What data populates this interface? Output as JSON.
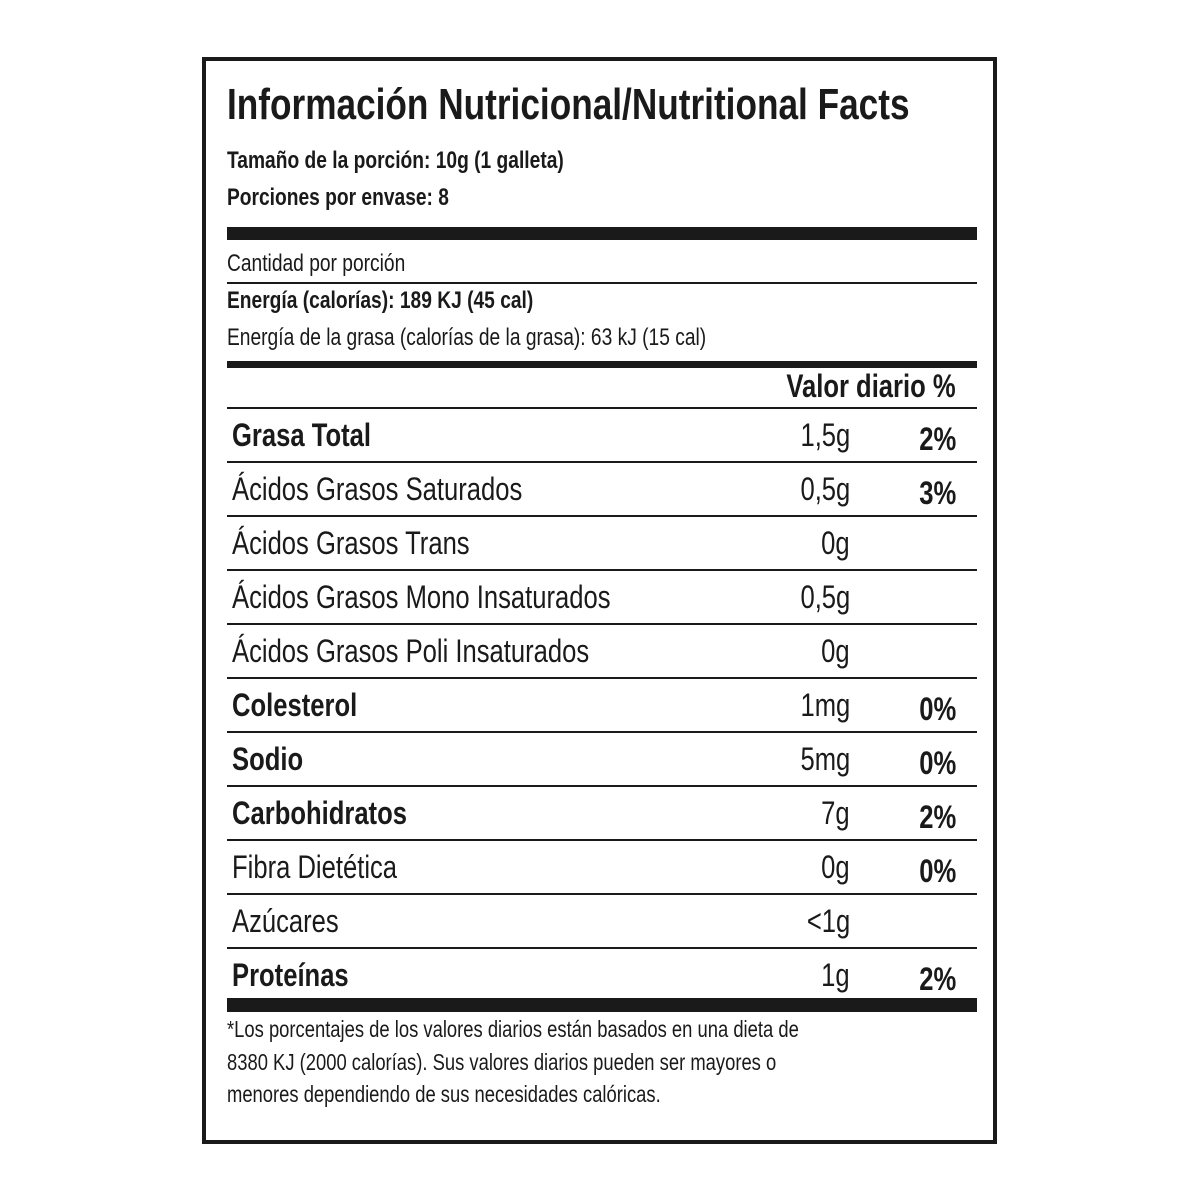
{
  "title": "Información Nutricional/Nutritional Facts",
  "serving_size": "Tamaño de la porción: 10g (1 galleta)",
  "servings_per_container": "Porciones por envase: 8",
  "amount_per_serving": "Cantidad por porción",
  "energy": "Energía (calorías): 189 KJ (45 cal)",
  "energy_from_fat": "Energía de la grasa  (calorías de la grasa): 63 kJ (15 cal)",
  "daily_value_header": "Valor diario %",
  "rows": [
    {
      "name": "Grasa Total",
      "value": "1,5g",
      "percent": "2%",
      "bold": true
    },
    {
      "name": "Ácidos Grasos Saturados",
      "value": "0,5g",
      "percent": "3%",
      "bold": false
    },
    {
      "name": "Ácidos Grasos Trans",
      "value": "0g",
      "percent": "",
      "bold": false
    },
    {
      "name": "Ácidos Grasos Mono Insaturados",
      "value": "0,5g",
      "percent": "",
      "bold": false
    },
    {
      "name": "Ácidos Grasos Poli Insaturados",
      "value": "0g",
      "percent": "",
      "bold": false
    },
    {
      "name": "Colesterol",
      "value": "1mg",
      "percent": "0%",
      "bold": true
    },
    {
      "name": "Sodio",
      "value": "5mg",
      "percent": "0%",
      "bold": true
    },
    {
      "name": "Carbohidratos",
      "value": "7g",
      "percent": "2%",
      "bold": true
    },
    {
      "name": "Fibra Dietética",
      "value": "0g",
      "percent": "0%",
      "bold": false
    },
    {
      "name": "Azúcares",
      "value": "<1g",
      "percent": "",
      "bold": false
    },
    {
      "name": "Proteínas",
      "value": "1g",
      "percent": "2%",
      "bold": true
    }
  ],
  "footnote": [
    "*Los porcentajes de los valores diarios están basados en una dieta de",
    "8380 KJ (2000 calorías). Sus valores diarios pueden ser mayores o",
    "menores dependiendo de sus necesidades calóricas."
  ]
}
